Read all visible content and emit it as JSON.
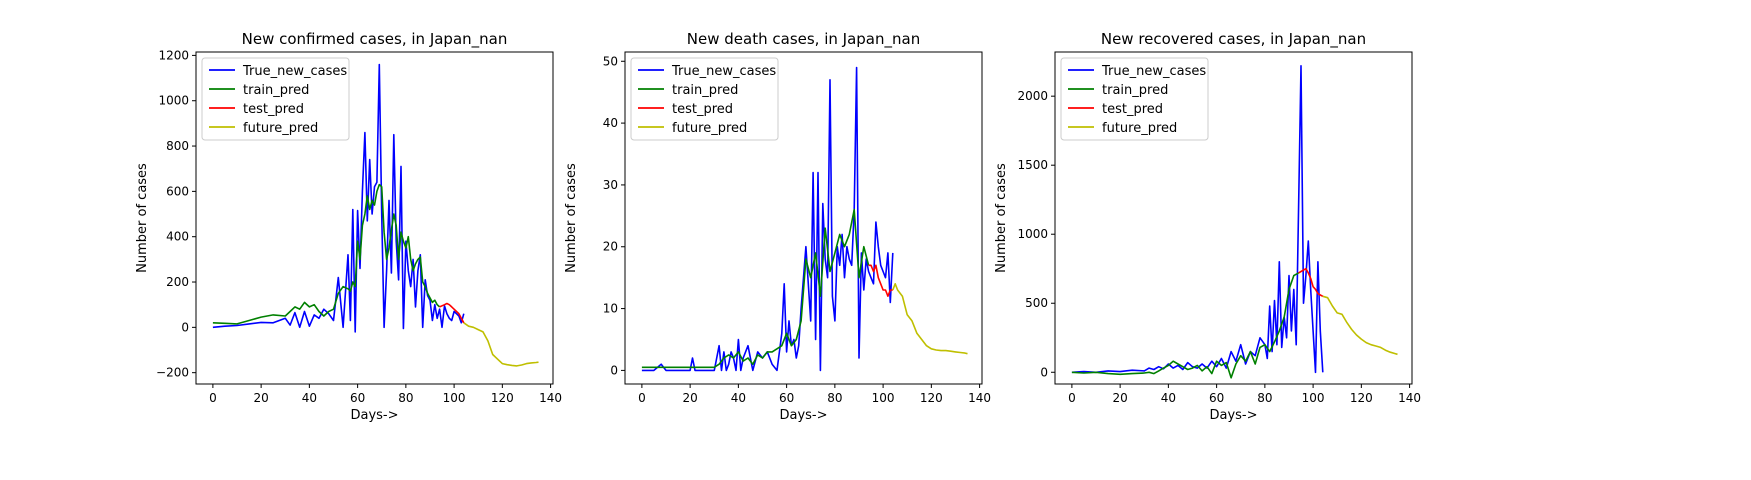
{
  "chart_data": [
    {
      "type": "line",
      "title": "New confirmed cases, in Japan_nan",
      "xlabel": "Days->",
      "ylabel": "Number of cases",
      "xlim": [
        -7,
        141
      ],
      "ylim": [
        -250,
        1215
      ],
      "xticks": [
        0,
        20,
        40,
        60,
        80,
        100,
        120,
        140
      ],
      "yticks": [
        -200,
        0,
        200,
        400,
        600,
        800,
        1000,
        1200
      ],
      "grid": false,
      "legend": "top-left",
      "series": [
        {
          "name": "True_new_cases",
          "color": "#0000ff",
          "x": [
            0,
            5,
            10,
            15,
            20,
            25,
            30,
            32,
            34,
            36,
            38,
            40,
            42,
            44,
            46,
            48,
            50,
            52,
            54,
            56,
            57,
            58,
            59,
            60,
            61,
            62,
            63,
            64,
            65,
            66,
            67,
            68,
            69,
            70,
            71,
            72,
            73,
            74,
            75,
            76,
            77,
            78,
            79,
            80,
            81,
            82,
            83,
            84,
            85,
            86,
            87,
            88,
            89,
            90,
            91,
            92,
            93,
            94,
            95,
            96,
            97,
            98,
            99,
            100,
            101,
            102,
            103,
            104
          ],
          "y": [
            0,
            5,
            8,
            15,
            22,
            20,
            40,
            10,
            65,
            0,
            70,
            5,
            55,
            40,
            80,
            60,
            30,
            220,
            0,
            320,
            30,
            520,
            -20,
            515,
            260,
            600,
            860,
            470,
            740,
            500,
            620,
            640,
            1160,
            500,
            0,
            250,
            560,
            240,
            850,
            380,
            210,
            710,
            -5,
            380,
            250,
            180,
            300,
            90,
            250,
            320,
            0,
            210,
            140,
            120,
            30,
            100,
            40,
            80,
            0,
            95,
            60,
            40,
            30,
            70,
            60,
            50,
            20,
            60
          ]
        },
        {
          "name": "train_pred",
          "color": "#008000",
          "x": [
            0,
            5,
            10,
            15,
            20,
            25,
            30,
            32,
            34,
            36,
            38,
            40,
            42,
            44,
            46,
            48,
            50,
            52,
            54,
            56,
            57,
            58,
            59,
            60,
            61,
            62,
            63,
            64,
            65,
            66,
            67,
            68,
            69,
            70,
            71,
            72,
            73,
            74,
            75,
            76,
            77,
            78,
            79,
            80,
            81,
            82,
            83,
            84,
            85,
            86,
            87,
            88,
            89,
            90,
            91,
            92,
            93,
            94
          ],
          "y": [
            20,
            18,
            15,
            30,
            45,
            55,
            50,
            70,
            90,
            80,
            110,
            90,
            100,
            70,
            50,
            70,
            80,
            150,
            180,
            170,
            160,
            200,
            180,
            380,
            300,
            450,
            500,
            580,
            520,
            560,
            540,
            600,
            630,
            620,
            420,
            300,
            350,
            430,
            500,
            450,
            300,
            420,
            380,
            350,
            400,
            300,
            250,
            280,
            300,
            310,
            200,
            180,
            150,
            130,
            110,
            120,
            100,
            90
          ]
        },
        {
          "name": "test_pred",
          "color": "#ff0000",
          "x": [
            94,
            95,
            96,
            97,
            98,
            99,
            100,
            101,
            102,
            103,
            104
          ],
          "y": [
            90,
            95,
            100,
            105,
            100,
            90,
            80,
            70,
            60,
            40,
            20
          ]
        },
        {
          "name": "future_pred",
          "color": "#bfbf00",
          "x": [
            104,
            106,
            108,
            110,
            112,
            114,
            116,
            118,
            120,
            122,
            124,
            126,
            128,
            130,
            132,
            134,
            135
          ],
          "y": [
            20,
            5,
            0,
            -10,
            -20,
            -60,
            -120,
            -140,
            -160,
            -165,
            -168,
            -170,
            -166,
            -160,
            -157,
            -155,
            -154
          ]
        }
      ]
    },
    {
      "type": "line",
      "title": "New death cases, in Japan_nan",
      "xlabel": "Days->",
      "ylabel": "Number of cases",
      "xlim": [
        -7,
        141
      ],
      "ylim": [
        -2.2,
        51.5
      ],
      "xticks": [
        0,
        20,
        40,
        60,
        80,
        100,
        120,
        140
      ],
      "yticks": [
        0,
        10,
        20,
        30,
        40,
        50
      ],
      "grid": false,
      "legend": "top-left",
      "series": [
        {
          "name": "True_new_cases",
          "color": "#0000ff",
          "x": [
            0,
            5,
            8,
            10,
            15,
            20,
            21,
            22,
            25,
            30,
            32,
            33,
            34,
            35,
            36,
            37,
            38,
            39,
            40,
            41,
            42,
            44,
            46,
            48,
            50,
            52,
            54,
            56,
            58,
            59,
            60,
            61,
            62,
            63,
            64,
            65,
            66,
            68,
            70,
            71,
            72,
            73,
            74,
            75,
            76,
            77,
            78,
            79,
            80,
            81,
            82,
            83,
            84,
            85,
            86,
            87,
            88,
            89,
            90,
            91,
            92,
            93,
            94,
            95,
            96,
            97,
            98,
            99,
            100,
            101,
            102,
            103,
            104
          ],
          "y": [
            0,
            0,
            1,
            0,
            0,
            0,
            2,
            0,
            0,
            0,
            4,
            0,
            3,
            0,
            1,
            3,
            2,
            0,
            5,
            0,
            2,
            4,
            0,
            3,
            2,
            3,
            1,
            0,
            6,
            14,
            3,
            8,
            4,
            5,
            2,
            4,
            10,
            20,
            8,
            32,
            5,
            32,
            0,
            27,
            18,
            15,
            47,
            12,
            8,
            20,
            17,
            22,
            15,
            20,
            18,
            17,
            26,
            49,
            2,
            19,
            13,
            18,
            16,
            15,
            14,
            24,
            20,
            17,
            16,
            15,
            19,
            11,
            19
          ]
        },
        {
          "name": "train_pred",
          "color": "#008000",
          "x": [
            0,
            5,
            10,
            15,
            20,
            25,
            30,
            32,
            34,
            36,
            38,
            40,
            42,
            44,
            46,
            48,
            50,
            52,
            54,
            56,
            58,
            60,
            62,
            64,
            66,
            68,
            70,
            72,
            74,
            76,
            78,
            80,
            82,
            84,
            86,
            88,
            90,
            92,
            94
          ],
          "y": [
            0.5,
            0.5,
            0.5,
            0.5,
            0.5,
            0.5,
            0.5,
            1,
            2,
            2.5,
            2,
            3,
            1.5,
            2,
            1,
            2.5,
            2,
            3,
            3,
            3.5,
            4,
            6,
            4,
            5,
            8,
            18,
            15,
            19,
            12,
            23,
            16,
            19,
            22,
            20,
            22,
            26,
            15,
            20,
            17
          ]
        },
        {
          "name": "test_pred",
          "color": "#ff0000",
          "x": [
            94,
            95,
            96,
            97,
            98,
            99,
            100,
            101,
            102,
            103,
            104
          ],
          "y": [
            17,
            17,
            16,
            17,
            15,
            14,
            13,
            13,
            12,
            13,
            13
          ]
        },
        {
          "name": "future_pred",
          "color": "#bfbf00",
          "x": [
            104,
            105,
            106,
            108,
            110,
            112,
            114,
            116,
            118,
            120,
            122,
            124,
            126,
            128,
            130,
            132,
            134,
            135
          ],
          "y": [
            13,
            14,
            13,
            12,
            9,
            8,
            6,
            5,
            4,
            3.5,
            3.3,
            3.2,
            3.2,
            3.1,
            3.0,
            2.9,
            2.8,
            2.7
          ]
        }
      ]
    },
    {
      "type": "line",
      "title": "New recovered cases, in Japan_nan",
      "xlabel": "Days->",
      "ylabel": "Number of cases",
      "xlim": [
        -7,
        141
      ],
      "ylim": [
        -85,
        2320
      ],
      "xticks": [
        0,
        20,
        40,
        60,
        80,
        100,
        120,
        140
      ],
      "yticks": [
        0,
        500,
        1000,
        1500,
        2000
      ],
      "grid": false,
      "legend": "top-left",
      "series": [
        {
          "name": "True_new_cases",
          "color": "#0000ff",
          "x": [
            0,
            5,
            10,
            15,
            20,
            25,
            30,
            32,
            34,
            36,
            38,
            40,
            42,
            44,
            46,
            48,
            50,
            52,
            54,
            56,
            58,
            60,
            62,
            64,
            66,
            68,
            70,
            72,
            74,
            76,
            78,
            80,
            81,
            82,
            83,
            84,
            85,
            86,
            87,
            88,
            89,
            90,
            91,
            92,
            93,
            94,
            95,
            96,
            97,
            98,
            99,
            100,
            101,
            102,
            103,
            104
          ],
          "y": [
            0,
            5,
            0,
            10,
            5,
            15,
            10,
            30,
            20,
            40,
            25,
            60,
            30,
            50,
            20,
            70,
            40,
            30,
            60,
            30,
            80,
            40,
            100,
            30,
            150,
            80,
            200,
            60,
            150,
            120,
            250,
            200,
            100,
            480,
            150,
            520,
            200,
            800,
            180,
            400,
            250,
            700,
            300,
            600,
            200,
            1200,
            2220,
            500,
            700,
            950,
            600,
            300,
            0,
            800,
            300,
            0
          ]
        },
        {
          "name": "train_pred",
          "color": "#008000",
          "x": [
            0,
            5,
            10,
            15,
            20,
            25,
            30,
            32,
            34,
            36,
            38,
            40,
            42,
            44,
            46,
            48,
            50,
            52,
            54,
            56,
            58,
            60,
            62,
            64,
            66,
            68,
            70,
            72,
            74,
            76,
            78,
            80,
            82,
            84,
            86,
            88,
            90,
            92,
            94
          ],
          "y": [
            0,
            -5,
            0,
            -10,
            -15,
            -10,
            -5,
            0,
            -10,
            10,
            30,
            50,
            80,
            60,
            40,
            20,
            30,
            50,
            10,
            40,
            -10,
            80,
            50,
            70,
            -40,
            60,
            120,
            80,
            150,
            60,
            180,
            200,
            150,
            220,
            300,
            400,
            600,
            700,
            720
          ]
        },
        {
          "name": "test_pred",
          "color": "#ff0000",
          "x": [
            94,
            95,
            96,
            97,
            98,
            99,
            100,
            101,
            102,
            103,
            104
          ],
          "y": [
            720,
            730,
            740,
            750,
            720,
            680,
            620,
            600,
            570,
            560,
            550
          ]
        },
        {
          "name": "future_pred",
          "color": "#bfbf00",
          "x": [
            104,
            106,
            108,
            110,
            112,
            114,
            116,
            118,
            120,
            122,
            124,
            126,
            128,
            130,
            132,
            134,
            135
          ],
          "y": [
            550,
            540,
            480,
            430,
            420,
            360,
            310,
            270,
            240,
            215,
            200,
            190,
            180,
            160,
            145,
            135,
            130
          ]
        }
      ]
    }
  ]
}
